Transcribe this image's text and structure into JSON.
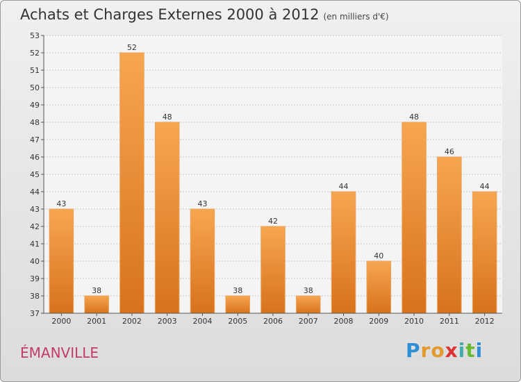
{
  "title": "Achats et Charges Externes 2000 à 2012",
  "unit": "(en milliers d'€)",
  "commune": "ÉMANVILLE",
  "logo": {
    "letters": [
      "P",
      "r",
      "o",
      "x",
      "i",
      "t",
      "i"
    ],
    "colors": [
      "#2f8fd5",
      "#e39a2c",
      "#e39a2c",
      "#d33",
      "#4aa",
      "#6b3",
      "#2f8fd5"
    ]
  },
  "chart_data": {
    "type": "bar",
    "categories": [
      "2000",
      "2001",
      "2002",
      "2003",
      "2004",
      "2005",
      "2006",
      "2007",
      "2008",
      "2009",
      "2010",
      "2011",
      "2012"
    ],
    "values": [
      43,
      38,
      52,
      48,
      43,
      38,
      42,
      38,
      44,
      40,
      48,
      46,
      44
    ],
    "ylim": [
      37,
      53
    ],
    "yticks": [
      37,
      38,
      39,
      40,
      41,
      42,
      43,
      44,
      45,
      46,
      47,
      48,
      49,
      50,
      51,
      52,
      53
    ],
    "grid": true,
    "bar_color": "#e8842e"
  }
}
